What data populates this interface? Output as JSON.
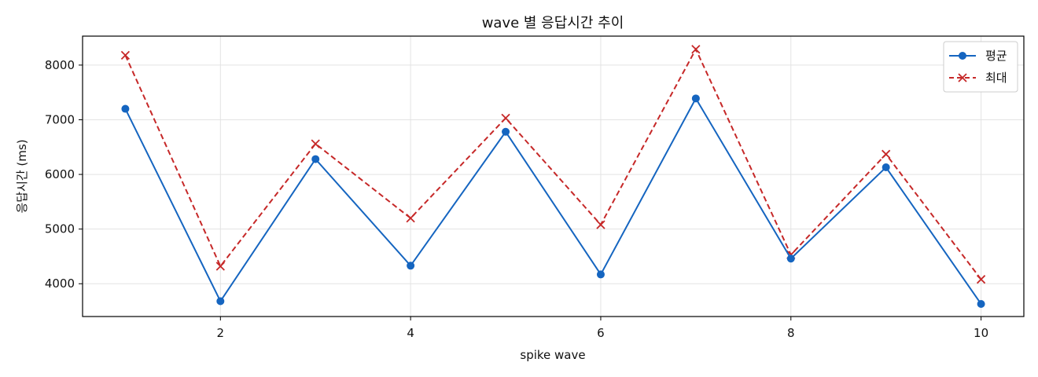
{
  "chart_data": {
    "type": "line",
    "title": "wave 별 응답시간 추이",
    "xlabel": "spike wave",
    "ylabel": "응답시간 (ms)",
    "x": [
      1,
      2,
      3,
      4,
      5,
      6,
      7,
      8,
      9,
      10
    ],
    "xlim": [
      0.55,
      10.45
    ],
    "ylim": [
      3400,
      8530
    ],
    "xticks": [
      2,
      4,
      6,
      8,
      10
    ],
    "yticks": [
      4000,
      5000,
      6000,
      7000,
      8000
    ],
    "grid": true,
    "legend_position": "top-right",
    "series": [
      {
        "name": "평균",
        "color": "#1565c0",
        "line_style": "solid",
        "marker": "circle",
        "values": [
          7200,
          3680,
          6280,
          4330,
          6780,
          4170,
          7390,
          4460,
          6130,
          3630
        ]
      },
      {
        "name": "최대",
        "color": "#c62828",
        "line_style": "dashed",
        "marker": "x",
        "values": [
          8180,
          4320,
          6560,
          5200,
          7030,
          5080,
          8290,
          4530,
          6370,
          4080
        ]
      }
    ]
  }
}
